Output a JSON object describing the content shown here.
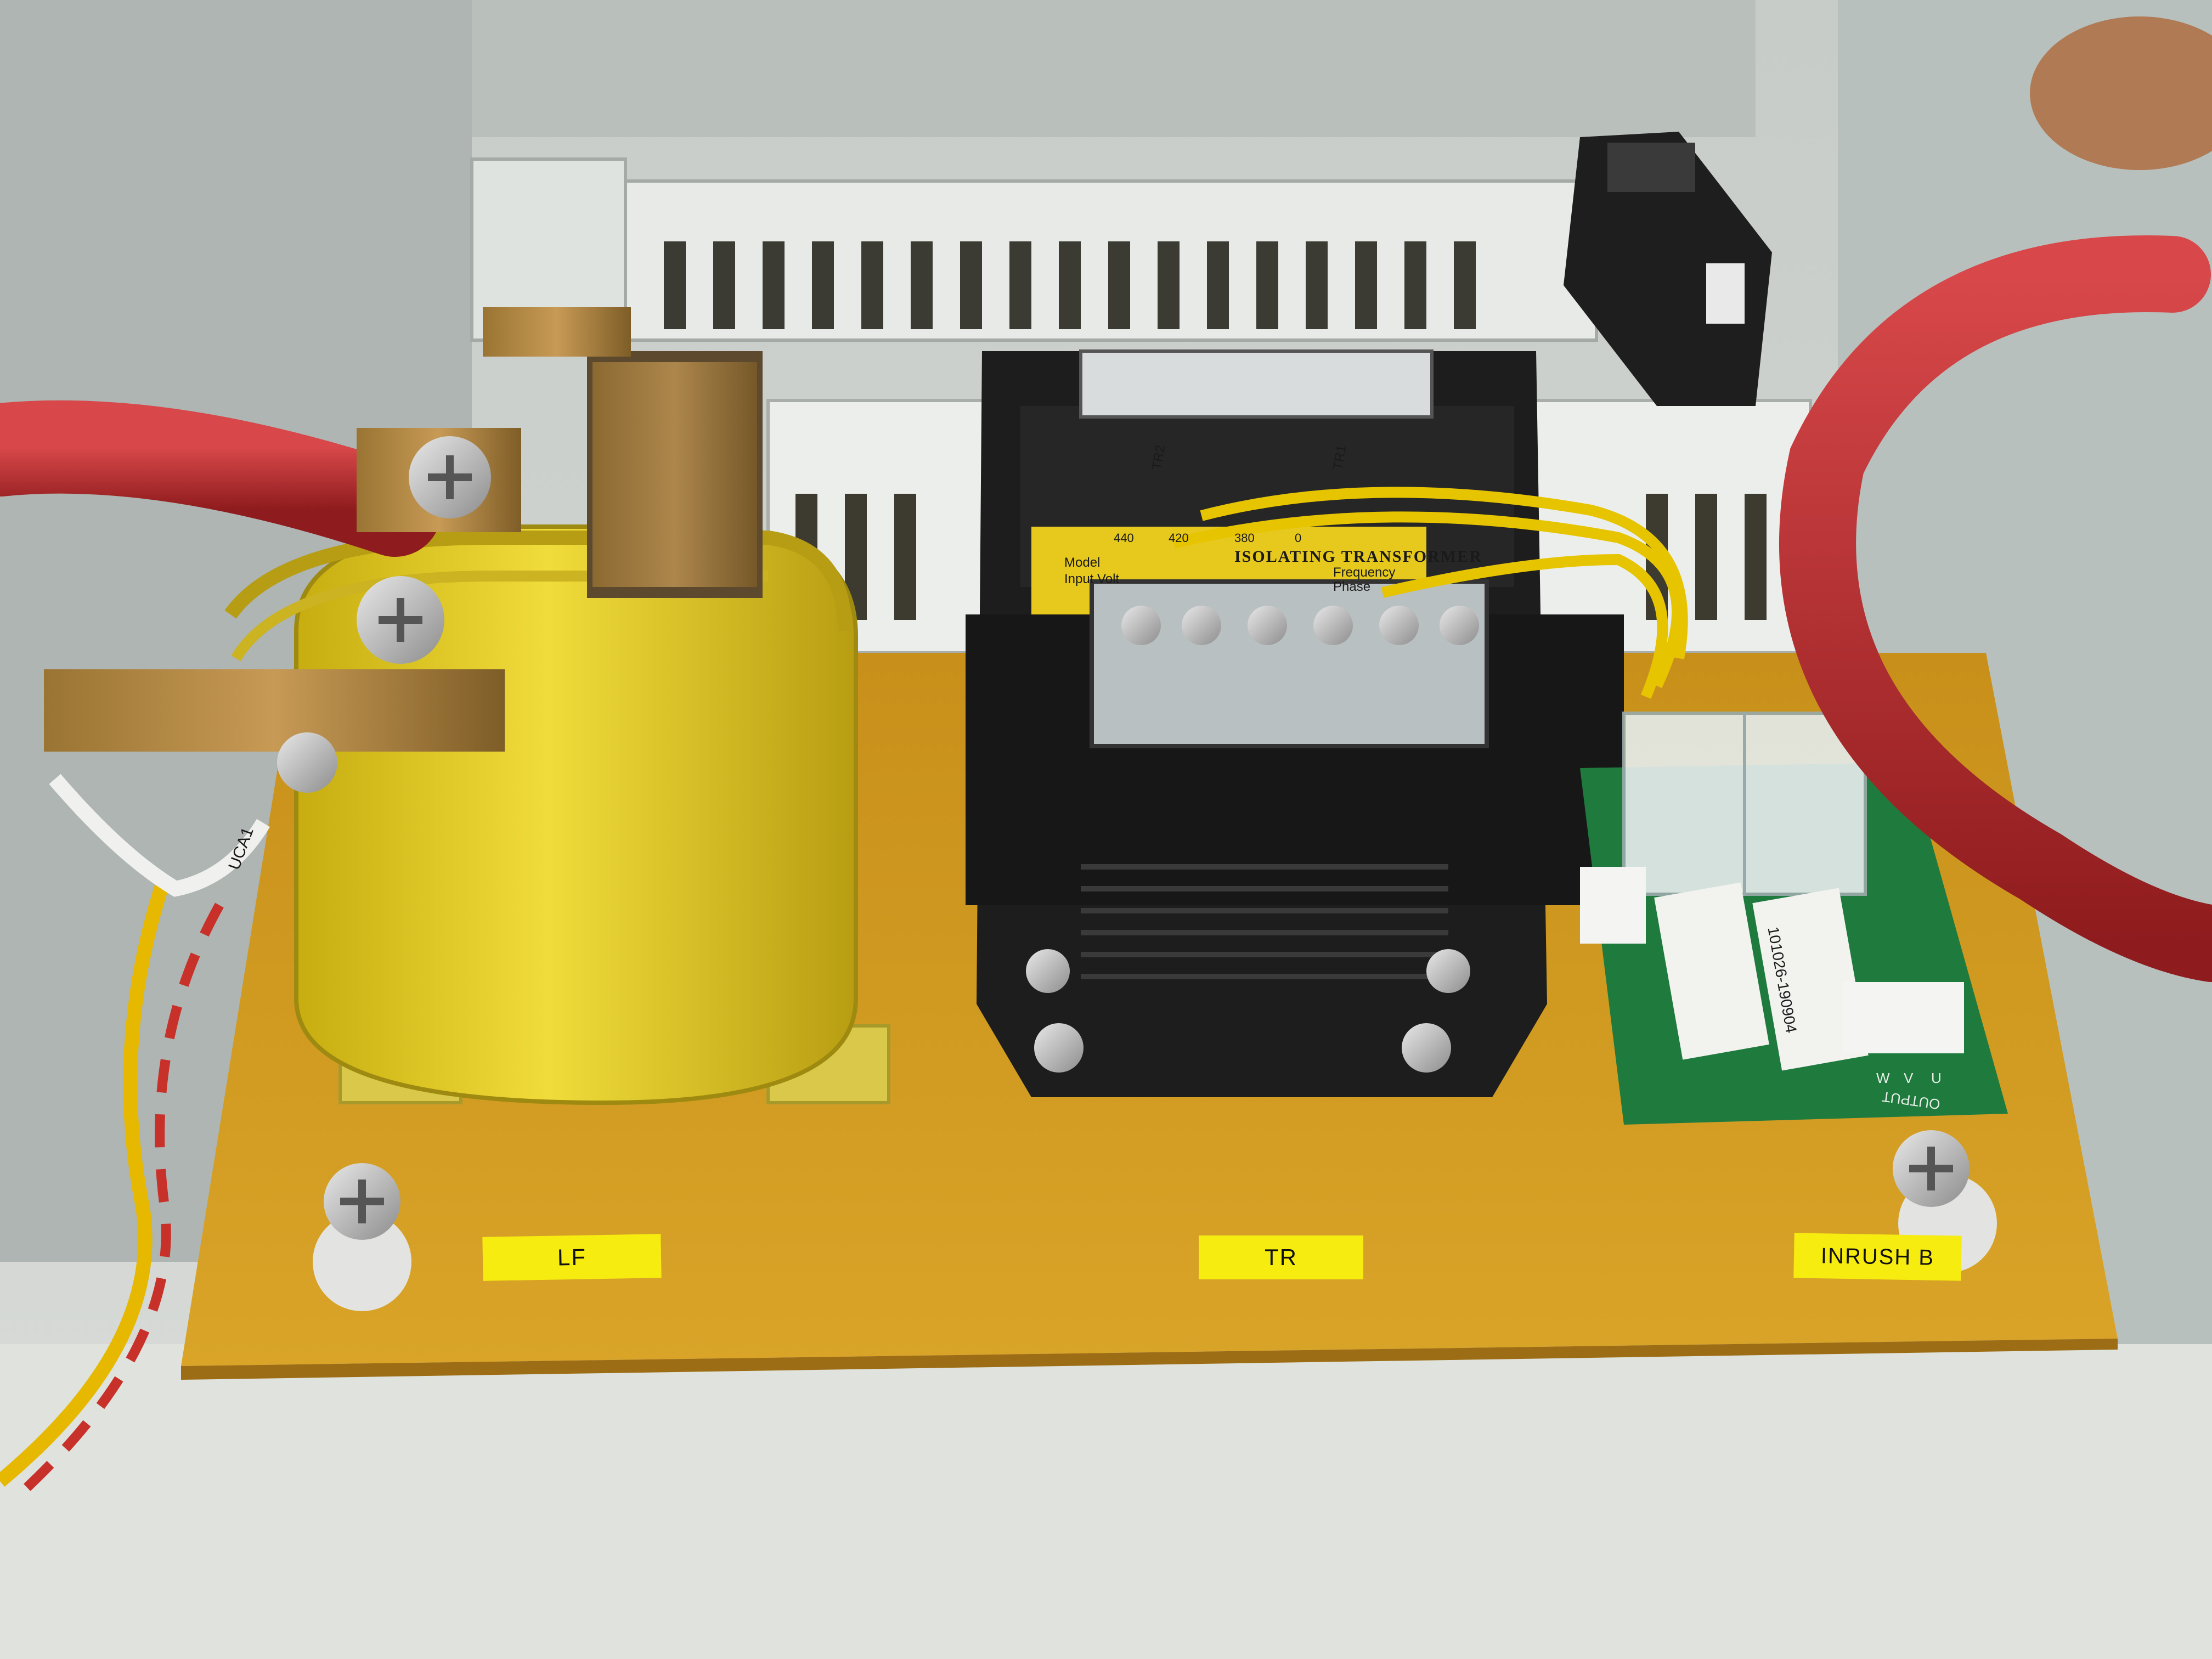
{
  "plate_labels": {
    "lf": "LF",
    "tr": "TR",
    "inrush": "INRUSH B"
  },
  "transformer_plate": {
    "title": "ISOLATING TRANSFORMER",
    "model_label": "Model",
    "input_label": "Input Volt",
    "frequency_label": "Frequency",
    "phase_label": "Phase",
    "taps": [
      "440",
      "420",
      "380",
      "0"
    ]
  },
  "wire_markers": {
    "left_sleeve": "UCA1",
    "tr_sleeve_1": "TR2",
    "tr_sleeve_2": "TR1"
  },
  "pcb": {
    "output_label": "OUTPUT",
    "phases": [
      "U",
      "V",
      "W"
    ],
    "resistor_code": "101026-190904"
  },
  "colors": {
    "plate": "#d6a21e",
    "reactor_tape": "#e9d21f",
    "transformer": "#1c1c1c",
    "cable": "#b8282a",
    "pcb": "#1f7a3e",
    "label_tape": "#f6ec10"
  }
}
